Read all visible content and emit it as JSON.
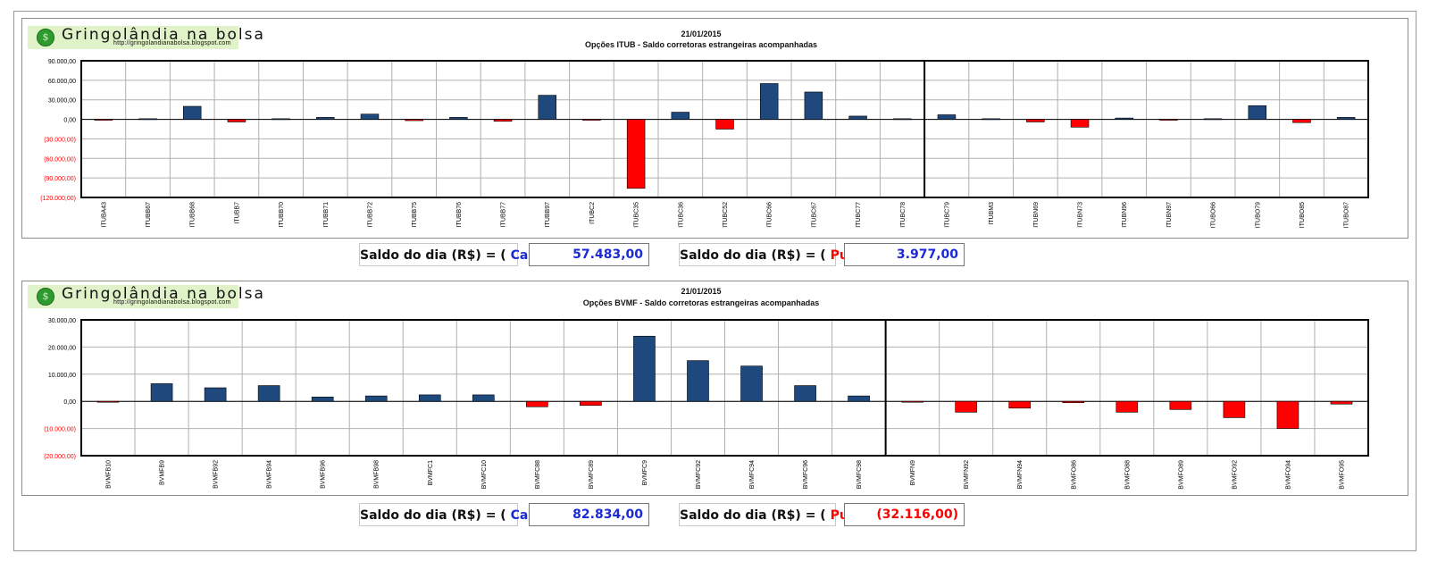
{
  "branding": {
    "name": "Gringolândia na bolsa",
    "url": "http://gringolandianabolsa.blogspot.com"
  },
  "colors": {
    "positive_bar": "#1f497d",
    "negative_bar": "#ff0000",
    "call_text": "#1a2ad6",
    "put_text": "#ff0000"
  },
  "chart_data": [
    {
      "type": "bar",
      "date": "21/01/2015",
      "title": "Opções  ITUB - Saldo corretoras estrangeiras acompanhadas",
      "ylim": [
        -120000,
        90000
      ],
      "yticks": [
        90000,
        60000,
        30000,
        0,
        -30000,
        -60000,
        -90000,
        -120000
      ],
      "ytick_labels": [
        "90.000,00",
        "60.000,00",
        "30.000,00",
        "0,00",
        "(30.000,00)",
        "(60.000,00)",
        "(90.000,00)",
        "(120.000,00)"
      ],
      "grid": true,
      "call_count": 19,
      "categories": [
        "ITUBA43",
        "ITUBB67",
        "ITUBB68",
        "ITUBB7",
        "ITUBB70",
        "ITUBB71",
        "ITUBB72",
        "ITUBB75",
        "ITUBB76",
        "ITUBB77",
        "ITUBB97",
        "ITUBC2",
        "ITUBC35",
        "ITUBC36",
        "ITUBC52",
        "ITUBC66",
        "ITUBC67",
        "ITUBC77",
        "ITUBC78",
        "ITUBC79",
        "ITUBM3",
        "ITUBN69",
        "ITUBN73",
        "ITUBN96",
        "ITUBN97",
        "ITUBO66",
        "ITUBO79",
        "ITUBO85",
        "ITUBO87"
      ],
      "values": [
        -1000,
        1000,
        20000,
        -4000,
        1000,
        3000,
        8000,
        -2000,
        3000,
        -3000,
        37000,
        -1000,
        -106000,
        11000,
        -15000,
        55000,
        42000,
        5000,
        1000,
        7000,
        1000,
        -4000,
        -12000,
        2000,
        -1000,
        1000,
        21000,
        -5000,
        3000
      ]
    },
    {
      "type": "bar",
      "date": "21/01/2015",
      "title": "Opções  BVMF - Saldo corretoras estrangeiras acompanhadas",
      "ylim": [
        -20000,
        30000
      ],
      "yticks": [
        30000,
        20000,
        10000,
        0,
        -10000,
        -20000
      ],
      "ytick_labels": [
        "30.000,00",
        "20.000,00",
        "10.000,00",
        "0,00",
        "(10.000,00)",
        "(20.000,00)"
      ],
      "grid": true,
      "call_count": 15,
      "categories": [
        "BVMFB10",
        "BVMFB9",
        "BVMFB92",
        "BVMFB94",
        "BVMFB96",
        "BVMFB98",
        "BVMFC1",
        "BVMFC10",
        "BVMFC88",
        "BVMFC89",
        "BVMFC9",
        "BVMFC92",
        "BVMFC94",
        "BVMFC96",
        "BVMFC98",
        "BVMFN9",
        "BVMFN92",
        "BVMFN94",
        "BVMFO86",
        "BVMFO88",
        "BVMFO89",
        "BVMFO92",
        "BVMFO94",
        "BVMFO95"
      ],
      "values": [
        -200,
        6500,
        5000,
        5800,
        1600,
        2000,
        2400,
        2400,
        -2000,
        -1500,
        24000,
        15000,
        13000,
        5800,
        2000,
        -200,
        -4000,
        -2500,
        -500,
        -4000,
        -3000,
        -6000,
        -10000,
        -1000
      ]
    }
  ],
  "summaries": [
    {
      "call_label_prefix": "Saldo do dia (R$) = (",
      "call_word": "Call",
      "call_label_suffix": ")",
      "call_value": "57.483,00",
      "put_label_prefix": "Saldo do dia (R$) = (",
      "put_word": "Put",
      "put_label_suffix": ")",
      "put_value": "3.977,00"
    },
    {
      "call_label_prefix": "Saldo do dia (R$) = (",
      "call_word": "Call",
      "call_label_suffix": ")",
      "call_value": "82.834,00",
      "put_label_prefix": "Saldo do dia (R$) = (",
      "put_word": "Put",
      "put_label_suffix": ")",
      "put_value": "(32.116,00)"
    }
  ]
}
